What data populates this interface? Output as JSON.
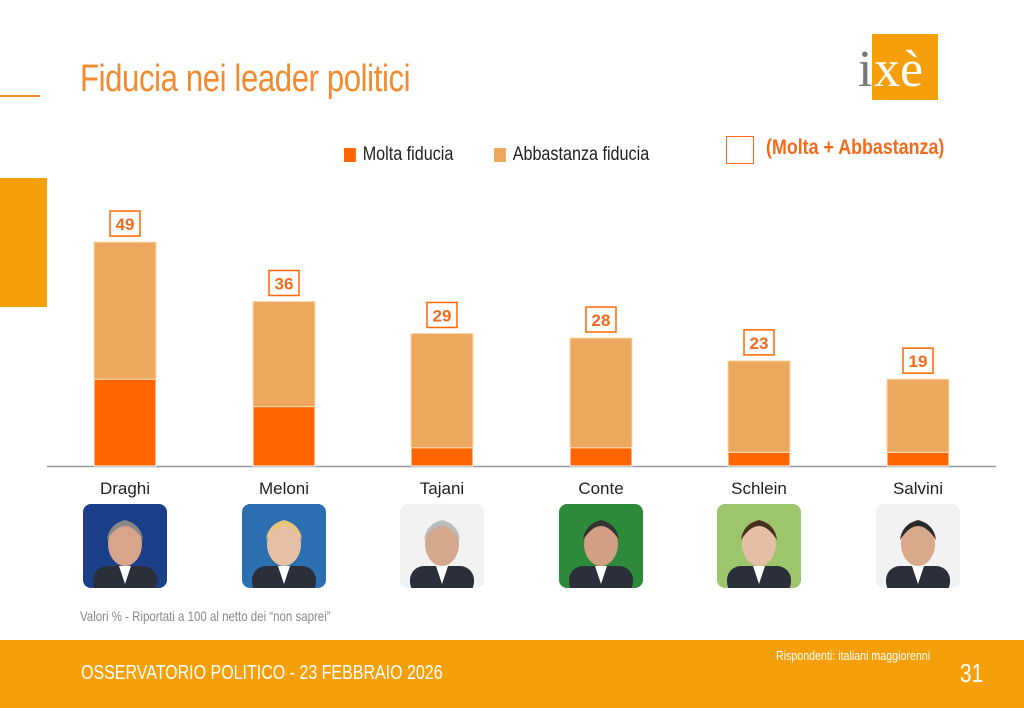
{
  "title": "Fiducia nei leader politici",
  "logo_text": "ixè",
  "legend": {
    "molta": "Molta fiducia",
    "abbastanza": "Abbastanza fiducia",
    "total": "(Molta + Abbastanza)"
  },
  "colors": {
    "molta": "#ff6600",
    "abbastanza": "#eca85c",
    "accent": "#f28a2e",
    "footer": "#f5a00a"
  },
  "note": "Valori % - Riportati a 100 al netto dei “non saprei”",
  "footer": {
    "left": "OSSERVATORIO POLITICO - 23 FEBBRAIO 2026",
    "respondents": "Rispondenti: italiani maggiorenni",
    "page": "31"
  },
  "chart_data": {
    "type": "bar",
    "stacked": true,
    "categories": [
      "Draghi",
      "Meloni",
      "Tajani",
      "Conte",
      "Schlein",
      "Salvini"
    ],
    "series": [
      {
        "name": "Molta fiducia",
        "values": [
          19,
          13,
          4,
          4,
          3,
          3
        ]
      },
      {
        "name": "Abbastanza fiducia",
        "values": [
          30,
          23,
          25,
          24,
          20,
          16
        ]
      }
    ],
    "totals": [
      49,
      36,
      29,
      28,
      23,
      19
    ],
    "ylim": [
      0,
      55
    ],
    "grid": false,
    "legend_position": "top"
  }
}
